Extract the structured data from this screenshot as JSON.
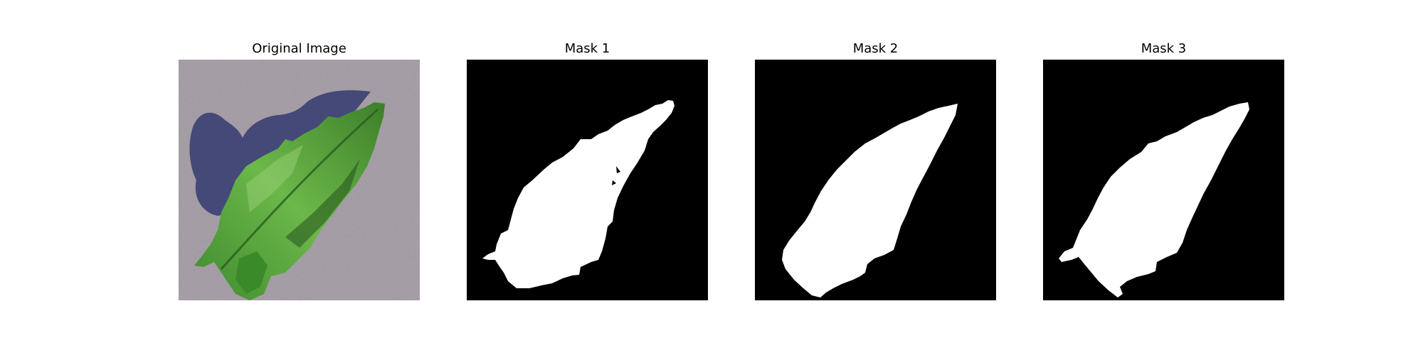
{
  "figure": {
    "panels": [
      {
        "title": "Original Image",
        "kind": "photo"
      },
      {
        "title": "Mask 1",
        "kind": "binary-mask"
      },
      {
        "title": "Mask 2",
        "kind": "binary-mask"
      },
      {
        "title": "Mask 3",
        "kind": "binary-mask"
      }
    ],
    "colors": {
      "background": "#ffffff",
      "mask_background": "#000000",
      "mask_foreground": "#ffffff",
      "ground": "#a39ba3",
      "shadow": "#3e4275",
      "leaf_dark": "#2f6e23",
      "leaf_light": "#6fbf4a"
    }
  }
}
